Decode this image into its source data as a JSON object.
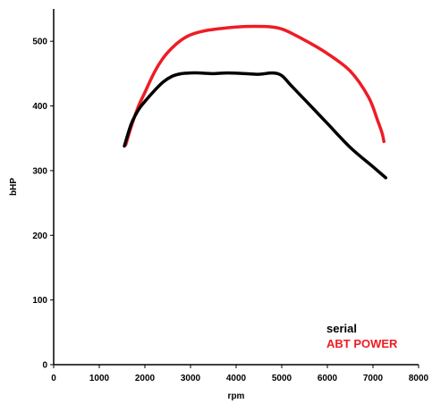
{
  "chart_data": {
    "type": "line",
    "title": "",
    "xlabel": "rpm",
    "ylabel": "bHP",
    "xlim": [
      0,
      8000
    ],
    "ylim": [
      0,
      550
    ],
    "xticks": [
      0,
      1000,
      2000,
      3000,
      4000,
      5000,
      6000,
      7000,
      8000
    ],
    "yticks": [
      0,
      100,
      200,
      300,
      400,
      500
    ],
    "grid": false,
    "legend_position": "bottom-right",
    "series": [
      {
        "name": "serial",
        "color": "#000000",
        "x": [
          1550,
          1700,
          1850,
          2000,
          2200,
          2400,
          2600,
          2800,
          3000,
          3200,
          3500,
          3800,
          4200,
          4500,
          4800,
          5000,
          5200,
          5500,
          6000,
          6500,
          7000,
          7280
        ],
        "y": [
          338,
          372,
          393,
          407,
          423,
          437,
          446,
          450,
          451,
          451,
          450,
          451,
          450,
          449,
          451,
          447,
          432,
          410,
          373,
          336,
          306,
          289
        ]
      },
      {
        "name": "ABT POWER",
        "color": "#ee1c24",
        "x": [
          1580,
          1700,
          1850,
          2000,
          2200,
          2400,
          2600,
          2800,
          3000,
          3300,
          3700,
          4000,
          4400,
          4800,
          5000,
          5200,
          5600,
          6000,
          6500,
          6900,
          7100,
          7200,
          7240
        ],
        "y": [
          340,
          368,
          398,
          421,
          451,
          474,
          490,
          502,
          510,
          516,
          520,
          522,
          523,
          522,
          519,
          513,
          498,
          481,
          454,
          414,
          378,
          358,
          345
        ]
      }
    ]
  }
}
